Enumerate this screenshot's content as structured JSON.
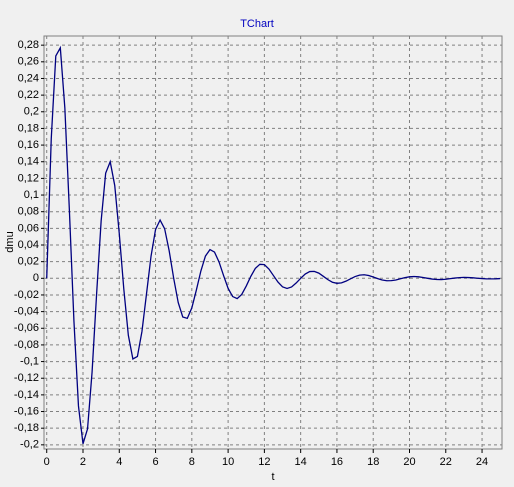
{
  "chart_data": {
    "type": "line",
    "title": "TChart",
    "x_label": "t",
    "y_label": "dmu",
    "x": [
      0,
      0.25,
      0.5,
      0.75,
      1,
      1.25,
      1.5,
      1.75,
      2,
      2.25,
      2.5,
      2.75,
      3,
      3.25,
      3.5,
      3.75,
      4,
      4.25,
      4.5,
      4.75,
      5,
      5.25,
      5.5,
      5.75,
      6,
      6.25,
      6.5,
      6.75,
      7,
      7.25,
      7.5,
      7.75,
      8,
      8.25,
      8.5,
      8.75,
      9,
      9.25,
      9.5,
      9.75,
      10,
      10.25,
      10.5,
      10.75,
      11,
      11.25,
      11.5,
      11.75,
      12,
      12.25,
      12.5,
      12.75,
      13,
      13.25,
      13.5,
      13.75,
      14,
      14.25,
      14.5,
      14.75,
      15,
      15.25,
      15.5,
      15.75,
      16,
      16.25,
      16.5,
      16.75,
      17,
      17.25,
      17.5,
      17.75,
      18,
      18.25,
      18.5,
      18.75,
      19,
      19.25,
      19.5,
      19.75,
      20,
      20.25,
      20.5,
      20.75,
      21,
      21.25,
      21.5,
      21.75,
      22,
      22.25,
      22.5,
      22.75,
      23,
      23.25,
      23.5,
      23.75,
      24,
      24.25,
      24.5,
      24.75,
      25
    ],
    "series": [
      {
        "name": "dmu",
        "color": "#000080",
        "values": [
          0,
          0.1679,
          0.2671,
          0.2768,
          0.2044,
          0.0814,
          -0.0513,
          -0.1533,
          -0.1987,
          -0.1809,
          -0.1127,
          -0.0189,
          0.0689,
          0.1263,
          0.14,
          0.1115,
          0.0536,
          -0.013,
          -0.0684,
          -0.0969,
          -0.0939,
          -0.0639,
          -0.0189,
          0.0264,
          0.0587,
          0.07,
          0.0596,
          0.0331,
          0,
          -0.0292,
          -0.0464,
          -0.0481,
          -0.0355,
          -0.0141,
          0.0089,
          0.0267,
          0.0345,
          0.0315,
          0.0196,
          0.0033,
          -0.012,
          -0.0219,
          -0.0244,
          -0.0194,
          -0.0093,
          0.0023,
          0.0119,
          0.0168,
          0.0164,
          0.0111,
          0.0033,
          -0.0046,
          -0.0102,
          -0.0122,
          -0.0104,
          -0.0057,
          0,
          0.0051,
          0.0081,
          0.0083,
          0.0062,
          0.0024,
          -0.0016,
          -0.0047,
          -0.006,
          -0.0055,
          -0.0034,
          -0.0006,
          0.0021,
          0.0038,
          0.0043,
          0.0034,
          0.0016,
          -0.0004,
          -0.0021,
          -0.0029,
          -0.0028,
          -0.002,
          -0.0006,
          0.0008,
          0.0018,
          0.0022,
          0.0018,
          0.001,
          0,
          -0.0009,
          -0.0014,
          -0.0015,
          -0.0011,
          -0.0004,
          0.0003,
          0.0008,
          0.0011,
          0.0009,
          0.0006,
          0.0001,
          -0.0003,
          -0.0007,
          -0.0007,
          -0.0006,
          -0.0003
        ]
      }
    ],
    "xlim": [
      -0.15,
      25.1
    ],
    "ylim": [
      -0.205,
      0.291
    ],
    "xticks": [
      0,
      2,
      4,
      6,
      8,
      10,
      12,
      14,
      16,
      18,
      20,
      22,
      24
    ],
    "yticks": [
      {
        "value": -0.2,
        "label": "-0,2"
      },
      {
        "value": -0.18,
        "label": "-0,18"
      },
      {
        "value": -0.16,
        "label": "-0,16"
      },
      {
        "value": -0.14,
        "label": "-0,14"
      },
      {
        "value": -0.12,
        "label": "-0,12"
      },
      {
        "value": -0.1,
        "label": "-0,1"
      },
      {
        "value": -0.08,
        "label": "-0,08"
      },
      {
        "value": -0.06,
        "label": "-0,06"
      },
      {
        "value": -0.04,
        "label": "-0,04"
      },
      {
        "value": -0.02,
        "label": "-0,02"
      },
      0,
      {
        "value": 0.02,
        "label": "0,02"
      },
      {
        "value": 0.04,
        "label": "0,04"
      },
      {
        "value": 0.06,
        "label": "0,06"
      },
      {
        "value": 0.08,
        "label": "0,08"
      },
      {
        "value": 0.1,
        "label": "0,1"
      },
      {
        "value": 0.12,
        "label": "0,12"
      },
      {
        "value": 0.14,
        "label": "0,14"
      },
      {
        "value": 0.16,
        "label": "0,16"
      },
      {
        "value": 0.18,
        "label": "0,18"
      },
      {
        "value": 0.2,
        "label": "0,2"
      },
      {
        "value": 0.22,
        "label": "0,22"
      },
      {
        "value": 0.24,
        "label": "0,24"
      },
      {
        "value": 0.26,
        "label": "0,26"
      },
      {
        "value": 0.28,
        "label": "0,28"
      }
    ],
    "grid": true
  }
}
